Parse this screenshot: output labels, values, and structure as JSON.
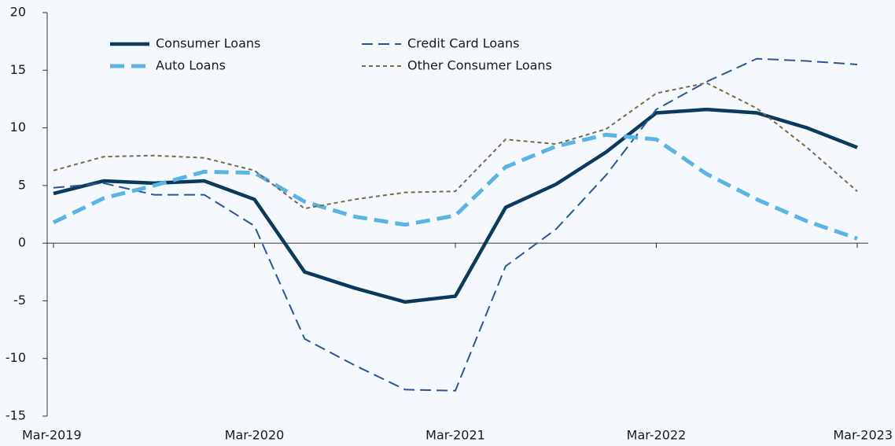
{
  "chart_data": {
    "type": "line",
    "categories": [
      "Mar-2019",
      null,
      null,
      null,
      "Mar-2020",
      null,
      null,
      null,
      "Mar-2021",
      null,
      null,
      null,
      "Mar-2022",
      null,
      null,
      null,
      "Mar-2023"
    ],
    "series": [
      {
        "name": "Consumer Loans",
        "color": "#0b3a5c",
        "values": [
          4.3,
          5.4,
          5.2,
          5.4,
          3.8,
          -2.5,
          -3.9,
          -5.1,
          -4.6,
          3.1,
          5.1,
          7.9,
          11.3,
          11.6,
          11.3,
          10.0,
          8.3
        ]
      },
      {
        "name": "Credit Card Loans",
        "color": "#2b5597",
        "values": [
          4.8,
          5.2,
          4.2,
          4.2,
          1.5,
          -8.3,
          -10.6,
          -12.7,
          -12.8,
          -2.0,
          1.2,
          5.9,
          11.6,
          14.0,
          16.0,
          15.8,
          15.5
        ]
      },
      {
        "name": "Auto Loans",
        "color": "#5ab4e5",
        "values": [
          1.8,
          3.9,
          5.0,
          6.2,
          6.1,
          3.6,
          2.3,
          1.6,
          2.4,
          6.6,
          8.4,
          9.4,
          9.0,
          6.0,
          3.8,
          1.9,
          0.4
        ]
      },
      {
        "name": "Other Consumer Loans",
        "color": "#7a6a45",
        "values": [
          6.3,
          7.5,
          7.6,
          7.4,
          6.3,
          3.0,
          3.8,
          4.4,
          4.5,
          9.0,
          8.6,
          9.9,
          13.0,
          13.9,
          11.7,
          8.3,
          4.5
        ]
      }
    ],
    "ylim": [
      -15,
      20
    ],
    "yticks": [
      -15,
      -10,
      -5,
      0,
      5,
      10,
      15,
      20
    ]
  }
}
